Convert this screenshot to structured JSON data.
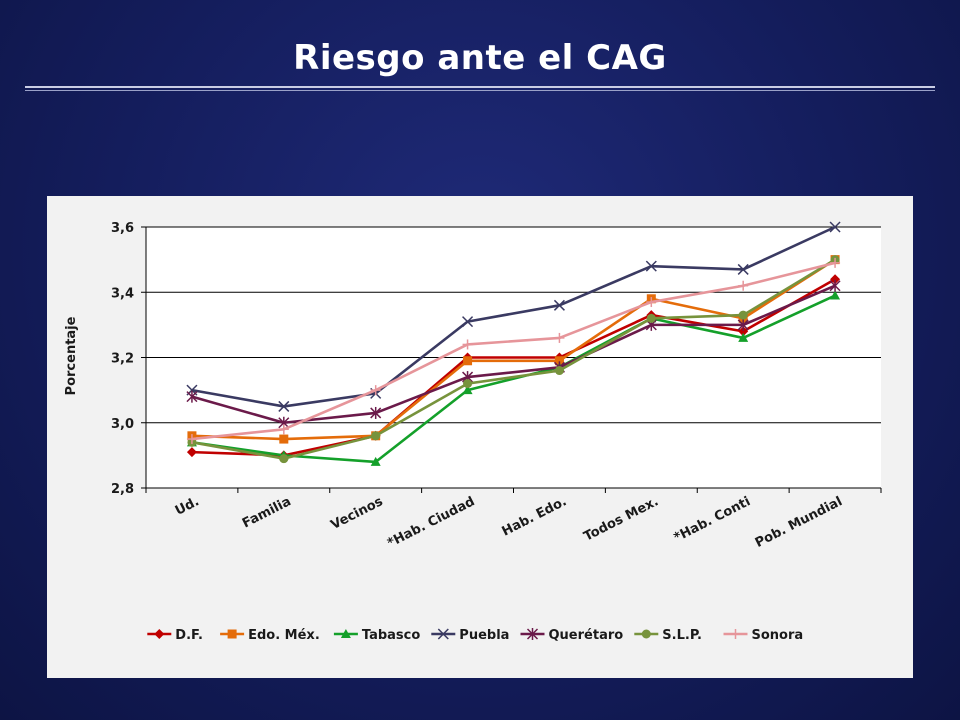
{
  "slide": {
    "title": "Riesgo ante el CAG"
  },
  "chart_data": {
    "type": "line",
    "title": "",
    "xlabel": "",
    "ylabel": "Porcentaje",
    "ylim": [
      2.8,
      3.6
    ],
    "yticks": [
      "2,8",
      "3,0",
      "3,2",
      "3,4",
      "3,6"
    ],
    "ytick_values": [
      2.8,
      3.0,
      3.2,
      3.4,
      3.6
    ],
    "grid": "horizontal",
    "legend_position": "bottom",
    "categories": [
      "Ud.",
      "Familia",
      "Vecinos",
      "*Hab. Ciudad",
      "Hab. Edo.",
      "Todos Mex.",
      "*Hab. Conti",
      "Pob. Mundial"
    ],
    "series": [
      {
        "name": "D.F.",
        "color": "#c00000",
        "marker": "diamond",
        "values": [
          2.91,
          2.9,
          2.96,
          3.2,
          3.2,
          3.33,
          3.28,
          3.44
        ]
      },
      {
        "name": "Edo. Méx.",
        "color": "#e46c0a",
        "marker": "square",
        "values": [
          2.96,
          2.95,
          2.96,
          3.19,
          3.19,
          3.38,
          3.32,
          3.5
        ]
      },
      {
        "name": "Tabasco",
        "color": "#14a02a",
        "marker": "triangle",
        "values": [
          2.94,
          2.9,
          2.88,
          3.1,
          3.17,
          3.32,
          3.26,
          3.39
        ]
      },
      {
        "name": "Puebla",
        "color": "#3a3a62",
        "marker": "x",
        "values": [
          3.1,
          3.05,
          3.09,
          3.31,
          3.36,
          3.48,
          3.47,
          3.6
        ]
      },
      {
        "name": "Querétaro",
        "color": "#6b1a4a",
        "marker": "star",
        "values": [
          3.08,
          3.0,
          3.03,
          3.14,
          3.17,
          3.3,
          3.3,
          3.42
        ]
      },
      {
        "name": "S.L.P.",
        "color": "#77933c",
        "marker": "circle",
        "values": [
          2.94,
          2.89,
          2.96,
          3.12,
          3.16,
          3.32,
          3.33,
          3.5
        ]
      },
      {
        "name": "Sonora",
        "color": "#e6959a",
        "marker": "plus",
        "values": [
          2.95,
          2.98,
          3.1,
          3.24,
          3.26,
          3.37,
          3.42,
          3.49
        ]
      }
    ]
  }
}
